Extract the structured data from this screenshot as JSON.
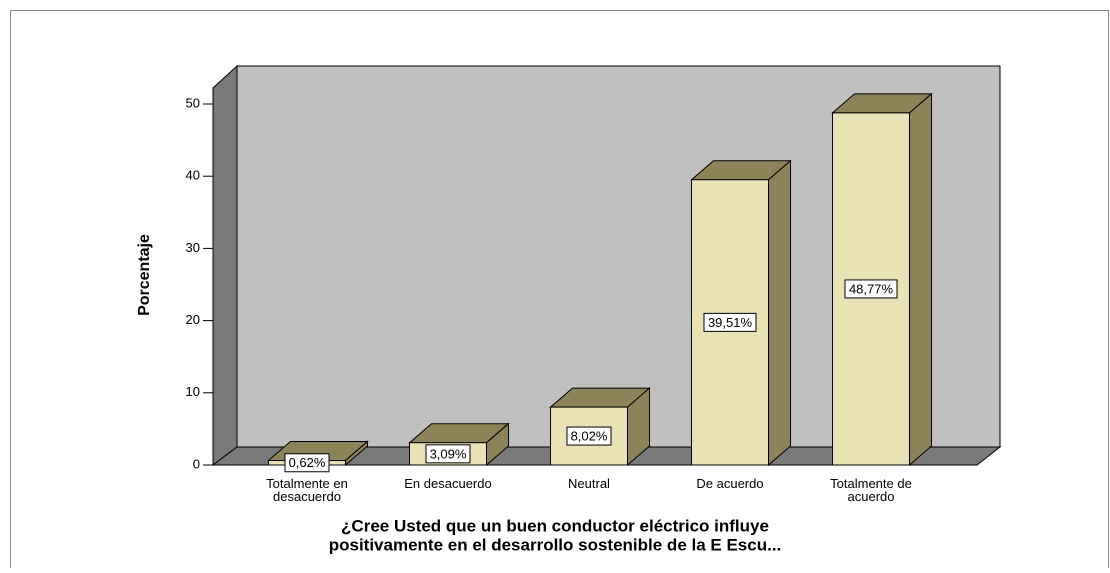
{
  "chart_data": {
    "type": "bar3d",
    "ylabel": "Porcentaje",
    "xlabel": [
      "¿Cree Usted que un buen conductor eléctrico influye",
      "positivamente en el desarrollo sostenible de la E Escu..."
    ],
    "categories": [
      "Totalmente en\ndesacuerdo",
      "En desacuerdo",
      "Neutral",
      "De acuerdo",
      "Totalmente de\nacuerdo"
    ],
    "values": [
      0.62,
      3.09,
      8.02,
      39.51,
      48.77
    ],
    "value_labels": [
      "0,62%",
      "3,09%",
      "8,02%",
      "39,51%",
      "48,77%"
    ],
    "color": "#e8e2b4",
    "ylim": [
      0,
      52
    ],
    "yticks": [
      0,
      10,
      20,
      30,
      40,
      50
    ]
  }
}
